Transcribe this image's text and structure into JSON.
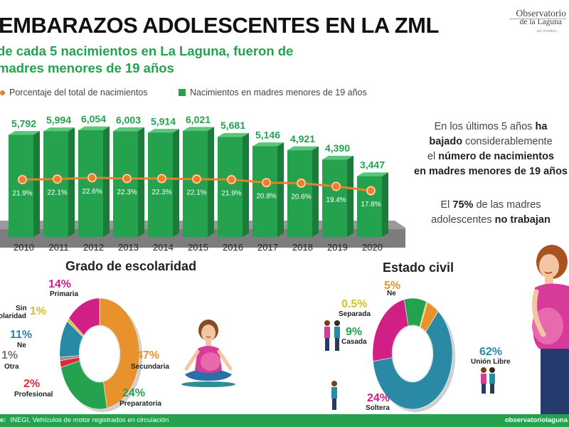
{
  "header": {
    "title": "EMBARAZOS ADOLESCENTES EN LA ZML",
    "subtitle_line1": "de cada 5 nacimientos en La Laguna, fueron de",
    "subtitle_line2": "madres menores de 19 años",
    "logo_line1": "Observatorio",
    "logo_line2": "de la Laguna",
    "logo_line3": "así vivimos..."
  },
  "legend": {
    "line_label": "Porcentaje del total de nacimientos",
    "bar_label": "Nacimientos en madres menores de 19 años"
  },
  "side": {
    "p1_a": "En los últimos 5 años ",
    "p1_b": "ha",
    "p1_c": "bajado",
    "p1_d": " considerablemente",
    "p1_e": "el ",
    "p1_f": "número de nacimientos",
    "p1_g": "en madres menores de 19 años",
    "p2_a": "El ",
    "p2_b": "75%",
    "p2_c": " de las madres",
    "p2_d": "adolescentes ",
    "p2_e": "no trabajan"
  },
  "school": {
    "title": "Grado de escolaridad",
    "labels": {
      "primaria": "Primaria",
      "sin": "Sin",
      "sin2": "olaridad",
      "ne": "Ne",
      "otra": "Otra",
      "profesional": "Profesional",
      "secundaria": "Secundaria",
      "preparatoria": "Preparatoria"
    },
    "pcts": {
      "primaria": "14%",
      "sin": "1%",
      "ne": "11%",
      "otra": "1%",
      "profesional": "2%",
      "secundaria": "47%",
      "preparatoria": "24%"
    }
  },
  "civil": {
    "title": "Estado civil",
    "labels": {
      "ne": "Ne",
      "separada": "Separada",
      "casada": "Casada",
      "union": "Unión Libre",
      "soltera": "Soltera"
    },
    "pcts": {
      "ne": "5%",
      "separada": "0.5%",
      "casada": "9%",
      "union": "62%",
      "soltera": "24%"
    }
  },
  "footer": {
    "source_label": "e:",
    "source_text": "INEGI, Vehículos de motor registrados en circulación",
    "site": "observatoriolaguna"
  },
  "chart_data": [
    {
      "type": "bar",
      "categories": [
        "2010",
        "2011",
        "2012",
        "2013",
        "2014",
        "2015",
        "2016",
        "2017",
        "2018",
        "2019",
        "2020"
      ],
      "series": [
        {
          "name": "Nacimientos en madres menores de 19 años",
          "values": [
            5792,
            5994,
            6054,
            6003,
            5914,
            6021,
            5681,
            5146,
            4921,
            4390,
            3447
          ]
        },
        {
          "name": "Porcentaje del total de nacimientos",
          "values": [
            21.9,
            22.1,
            22.6,
            22.3,
            22.3,
            22.1,
            21.9,
            20.8,
            20.6,
            19.4,
            17.8
          ]
        }
      ],
      "value_labels": [
        "5,792",
        "5,994",
        "6,054",
        "6,003",
        "5,914",
        "6,021",
        "5,681",
        "5,146",
        "4,921",
        "4,390",
        "3,447"
      ],
      "pct_labels": [
        "21.9%",
        "22.1%",
        "22.6%",
        "22.3%",
        "22.3%",
        "22.1%",
        "21.9%",
        "20.8%",
        "20.6%",
        "19.4%",
        "17.8%"
      ]
    },
    {
      "type": "pie",
      "categories": [
        "Secundaria",
        "Preparatoria",
        "Profesional",
        "Otra",
        "Ne",
        "Sin escolaridad",
        "Primaria"
      ],
      "values": [
        47,
        24,
        2,
        1,
        11,
        1,
        14
      ],
      "colors": [
        "#e8922e",
        "#25a24e",
        "#d92d3a",
        "#8c8c8c",
        "#2a8aa6",
        "#d4c22a",
        "#d11f86"
      ]
    },
    {
      "type": "pie",
      "categories": [
        "Unión Libre",
        "Soltera",
        "Casada",
        "Separada",
        "Ne"
      ],
      "values": [
        62,
        24,
        9,
        0.5,
        5
      ],
      "colors": [
        "#2a8aa6",
        "#d11f86",
        "#25a24e",
        "#d4c22a",
        "#e8922e"
      ]
    }
  ],
  "colors": {
    "green": "#25a24e",
    "orange": "#e8822a",
    "teal": "#2a8aa6",
    "magenta": "#d11f86",
    "red": "#d92d3a",
    "gray": "#8c8c8c",
    "yellow": "#d4c22a"
  }
}
